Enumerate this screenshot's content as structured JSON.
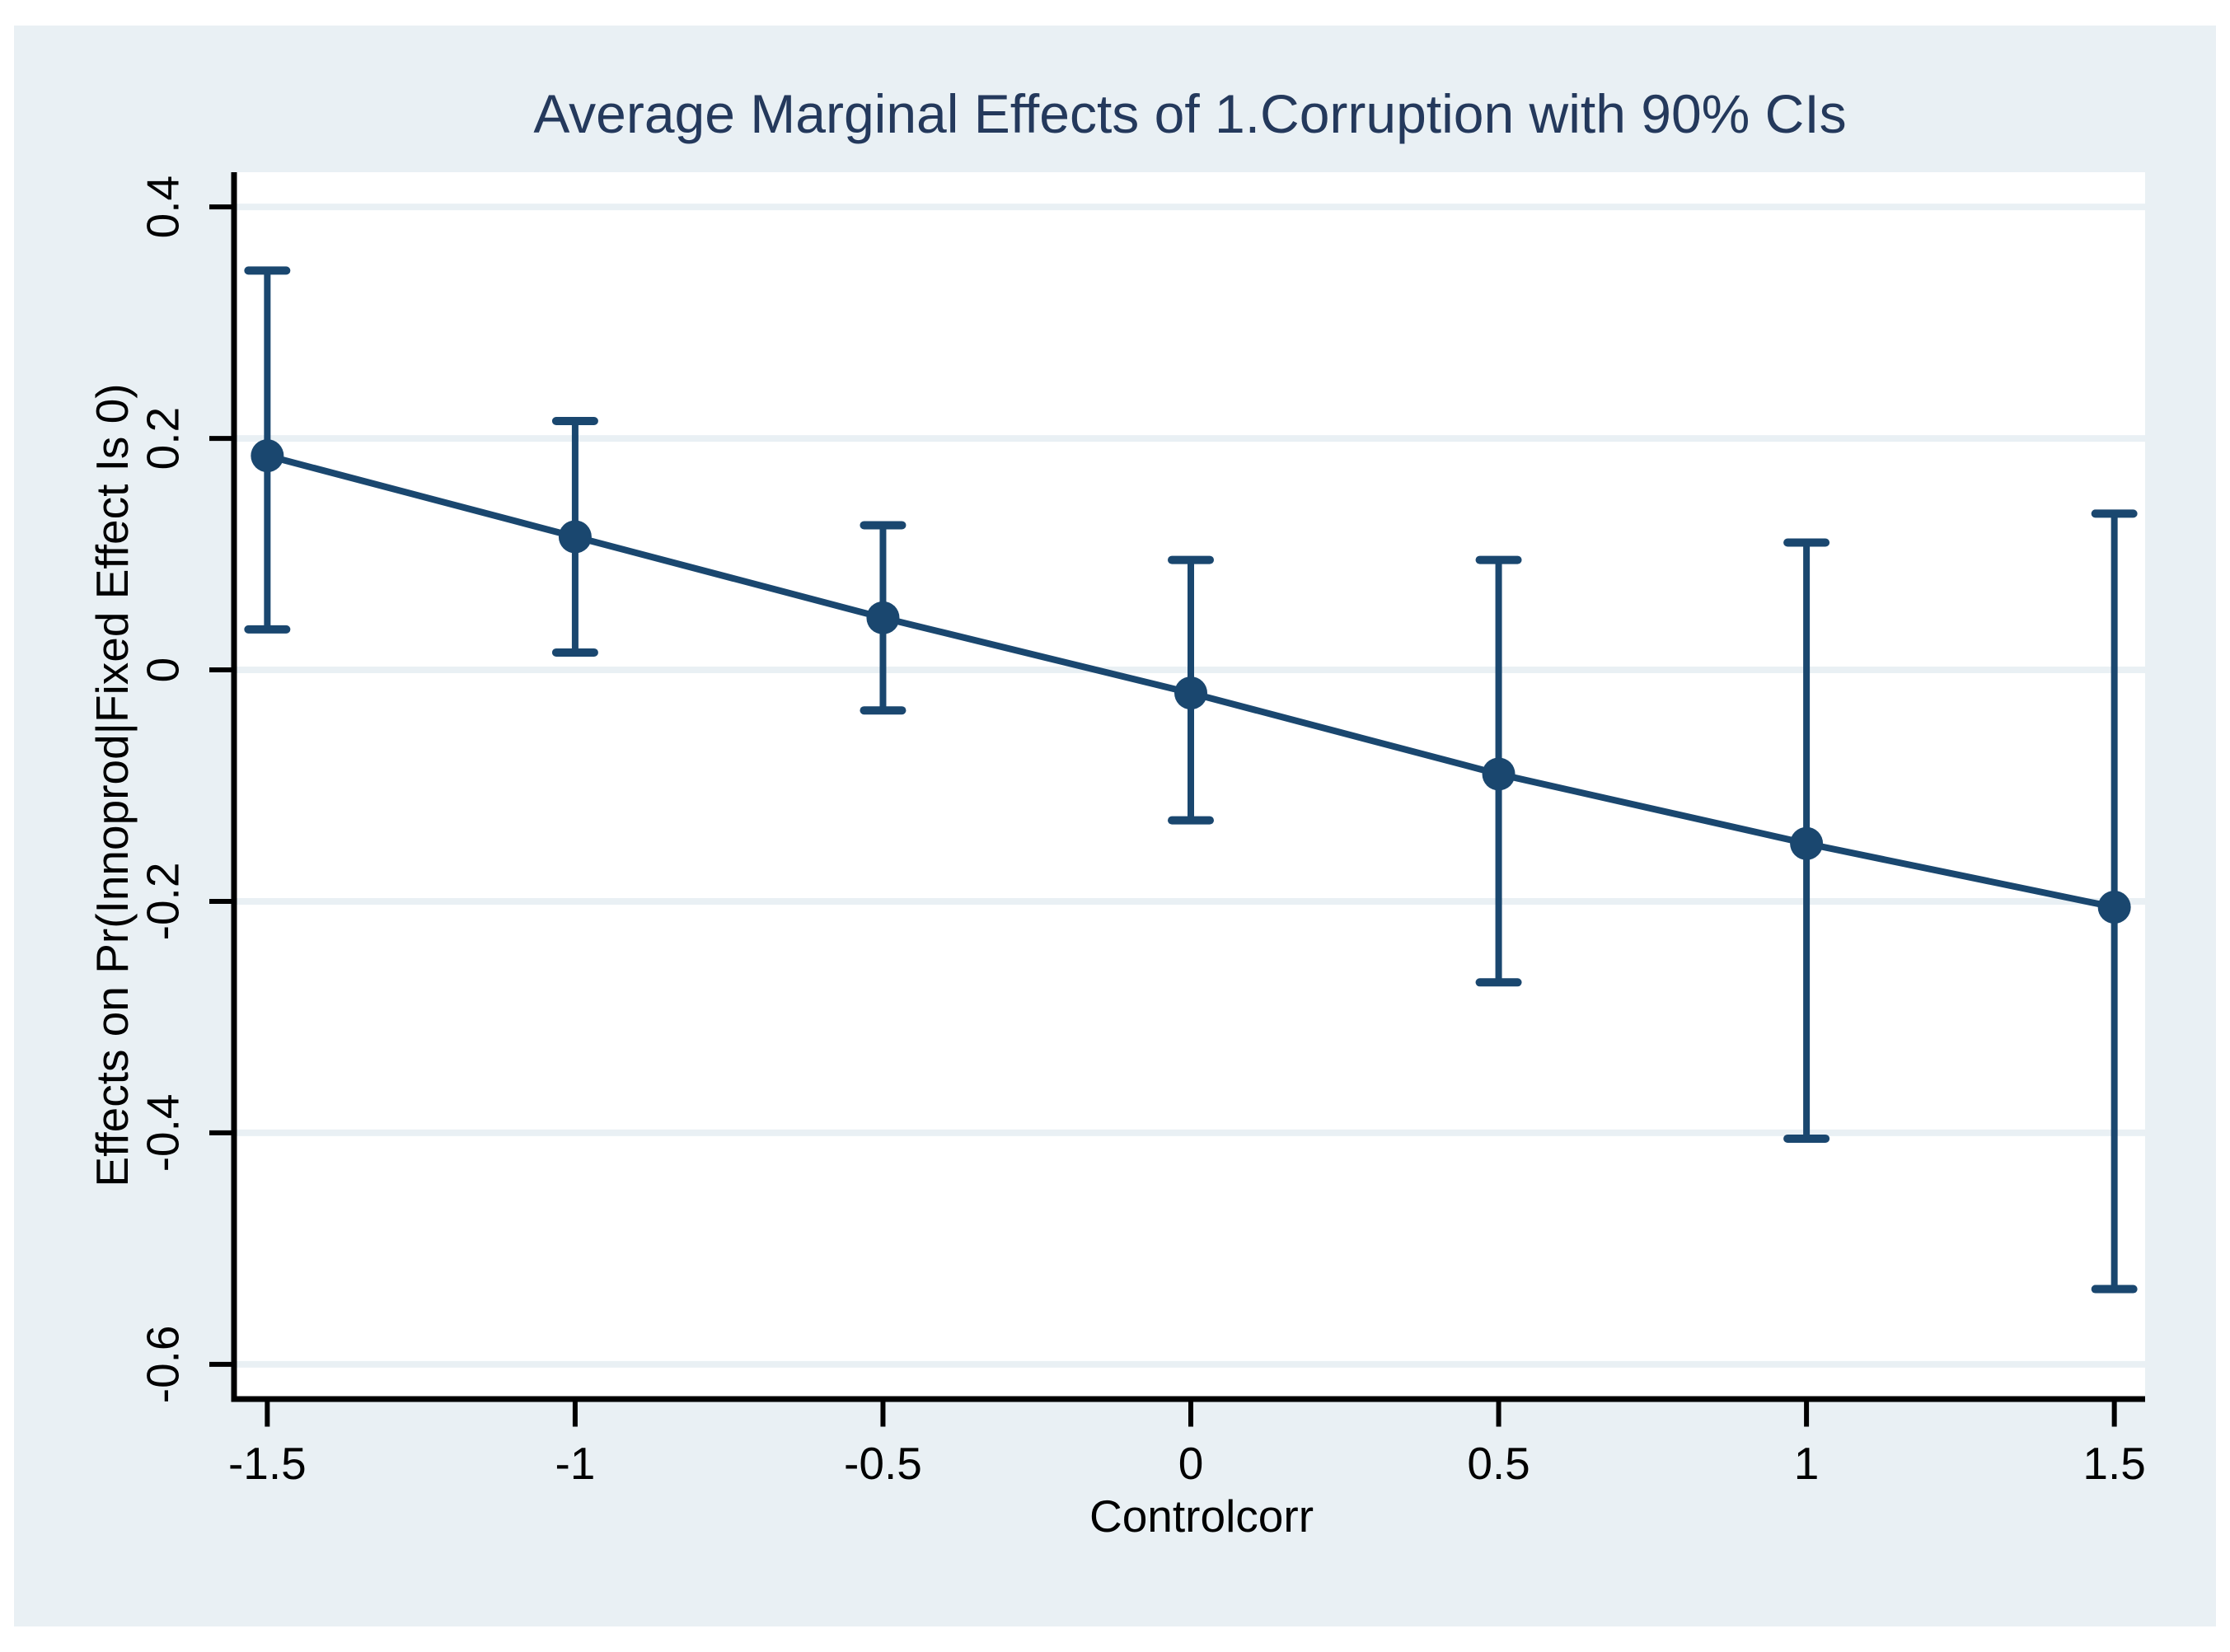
{
  "window": {
    "background_color": "#ffffff",
    "canvas_color": "#e9f0f4"
  },
  "chart_data": {
    "type": "line",
    "title": "Average Marginal Effects of 1.Corruption with 90% CIs",
    "xlabel": "Controlcorr",
    "ylabel": "Effects on Pr(Innoprod|Fixed Effect Is 0)",
    "ci_level": "90%",
    "x": [
      -1.5,
      -1,
      -0.5,
      0,
      0.5,
      1,
      1.5
    ],
    "series": [
      {
        "name": "average-marginal-effect",
        "values": [
          0.185,
          0.115,
          0.045,
          -0.02,
          -0.09,
          -0.15,
          -0.205
        ]
      },
      {
        "name": "ci-lower-90",
        "values": [
          0.035,
          0.015,
          -0.035,
          -0.13,
          -0.27,
          -0.405,
          -0.535
        ]
      },
      {
        "name": "ci-upper-90",
        "values": [
          0.345,
          0.215,
          0.125,
          0.095,
          0.095,
          0.11,
          0.135
        ]
      }
    ],
    "x_ticks": [
      {
        "value": -1.5,
        "label": "-1.5"
      },
      {
        "value": -1,
        "label": "-1"
      },
      {
        "value": -0.5,
        "label": "-0.5"
      },
      {
        "value": 0,
        "label": "0"
      },
      {
        "value": 0.5,
        "label": "0.5"
      },
      {
        "value": 1,
        "label": "1"
      },
      {
        "value": 1.5,
        "label": "1.5"
      }
    ],
    "y_ticks": [
      {
        "value": 0.4,
        "label": "0.4"
      },
      {
        "value": 0.2,
        "label": "0.2"
      },
      {
        "value": 0,
        "label": "0"
      },
      {
        "value": -0.2,
        "label": "-0.2"
      },
      {
        "value": -0.4,
        "label": "-0.4"
      },
      {
        "value": -0.6,
        "label": "-0.6"
      }
    ],
    "xlim": [
      -1.55,
      1.55
    ],
    "ylim": [
      -0.63,
      0.43
    ],
    "grid": "horizontal",
    "legend": "none",
    "colors": {
      "series": "#1a476f",
      "title": "#24395c",
      "axis": "#000000",
      "gridline": "#e9f0f4",
      "plot_background": "#ffffff"
    }
  }
}
